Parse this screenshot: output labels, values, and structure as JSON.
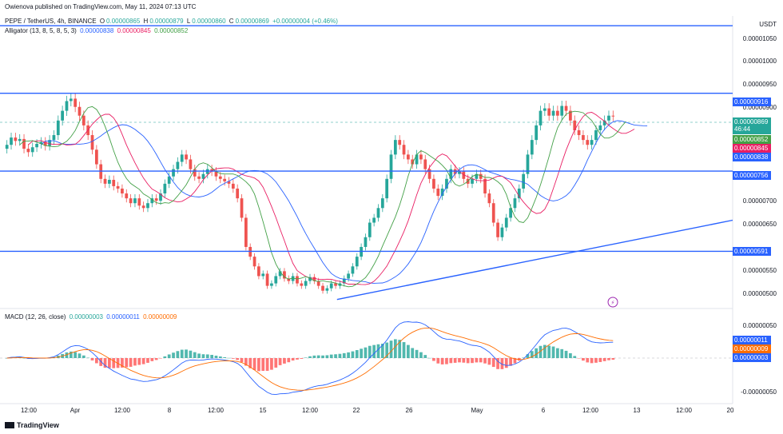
{
  "header": {
    "published": "Owienova published on TradingView.com, May 11, 2024 07:13 UTC",
    "symbol": "PEPE / TetherUS, 4h, BINANCE",
    "ohlc": {
      "o_label": "O",
      "o": "0.00000865",
      "h_label": "H",
      "h": "0.00000879",
      "l_label": "L",
      "l": "0.00000860",
      "c_label": "C",
      "c": "0.00000869",
      "change": "+0.00000004 (+0.46%)"
    },
    "alligator": {
      "label": "Alligator (13, 8, 5, 8, 5, 3)",
      "jaw": "0.00000838",
      "teeth": "0.00000845",
      "lips": "0.00000852"
    },
    "macd": {
      "label": "MACD (12, 26, close)",
      "hist": "0.00000003",
      "macd": "0.00000011",
      "signal": "0.00000009"
    }
  },
  "colors": {
    "up": "#26a69a",
    "down": "#ef5350",
    "jaw": "#2962ff",
    "teeth": "#e91e63",
    "lips": "#43a047",
    "line": "#2962ff",
    "signal": "#ff6d00",
    "macd_line": "#2962ff",
    "hist_up": "#26a69a",
    "hist_down": "#ff5252",
    "badge_current": "#26a69a"
  },
  "price_axis": {
    "currency": "USDT",
    "ticks": [
      "0.00001050",
      "0.00001000",
      "0.00000950",
      "0.00000900",
      "0.00000700",
      "0.00000650",
      "0.00000550",
      "0.00000500"
    ]
  },
  "macd_axis": {
    "ticks": [
      "0.00000050",
      "-0.00000050"
    ]
  },
  "badges": {
    "resistance_top": "0.00000916",
    "current": "0.00000869",
    "countdown": "46:44",
    "lips": "0.00000852",
    "teeth": "0.00000845",
    "jaw": "0.00000838",
    "level_mid": "0.00000756",
    "level_low": "0.00000591",
    "macd_line": "0.00000011",
    "signal": "0.00000009",
    "hist": "0.00000003"
  },
  "time_axis": [
    "12:00",
    "Apr",
    "12:00",
    "8",
    "12:00",
    "15",
    "12:00",
    "22",
    "26",
    "May",
    "6",
    "12:00",
    "13",
    "12:00",
    "20"
  ],
  "footer": {
    "brand": "TradingView"
  },
  "chart_data": {
    "type": "candlestick",
    "title": "PEPE / TetherUS, 4h, BINANCE",
    "ylim": [
      4.75e-06,
      1.075e-05
    ],
    "horizontal_levels": [
      1.055e-05,
      9.16e-06,
      7.56e-06,
      5.91e-06
    ],
    "trendline": [
      {
        "x": 0.46,
        "y": 4.92e-06
      },
      {
        "x": 1.0,
        "y": 6.55e-06
      }
    ],
    "closes": [
      8.1e-06,
      8.25e-06,
      8.18e-06,
      8.22e-06,
      8.02e-06,
      7.95e-06,
      8.05e-06,
      8.12e-06,
      8.16e-06,
      8.08e-06,
      8.2e-06,
      8.3e-06,
      8.6e-06,
      8.8e-06,
      9e-06,
      9.05e-06,
      8.88e-06,
      8.7e-06,
      8.5e-06,
      8.3e-06,
      8e-06,
      7.7e-06,
      7.4e-06,
      7.3e-06,
      7.38e-06,
      7.25e-06,
      7.2e-06,
      7.1e-06,
      7e-06,
      6.9e-06,
      7e-06,
      6.85e-06,
      6.8e-06,
      6.9e-06,
      7e-06,
      6.95e-06,
      7.1e-06,
      7.3e-06,
      7.45e-06,
      7.6e-06,
      7.75e-06,
      7.9e-06,
      7.8e-06,
      7.6e-06,
      7.45e-06,
      7.4e-06,
      7.5e-06,
      7.6e-06,
      7.55e-06,
      7.45e-06,
      7.4e-06,
      7.35e-06,
      7.3e-06,
      7.2e-06,
      7e-06,
      6.6e-06,
      6e-06,
      5.8e-06,
      5.6e-06,
      5.4e-06,
      5.45e-06,
      5.2e-06,
      5.25e-06,
      5.4e-06,
      5.5e-06,
      5.35e-06,
      5.3e-06,
      5.4e-06,
      5.25e-06,
      5.2e-06,
      5.3e-06,
      5.38e-06,
      5.3e-06,
      5.2e-06,
      5.1e-06,
      5.15e-06,
      5.25e-06,
      5.2e-06,
      5.25e-06,
      5.35e-06,
      5.45e-06,
      5.6e-06,
      5.8e-06,
      6e-06,
      6.2e-06,
      6.5e-06,
      6.6e-06,
      6.8e-06,
      7e-06,
      7.4e-06,
      7.9e-06,
      8.2e-06,
      8.1e-06,
      7.9e-06,
      7.8e-06,
      7.7e-06,
      7.9e-06,
      7.8e-06,
      7.6e-06,
      7.4e-06,
      7.2e-06,
      7.05e-06,
      7.2e-06,
      7.4e-06,
      7.6e-06,
      7.5e-06,
      7.55e-06,
      7.4e-06,
      7.3e-06,
      7.4e-06,
      7.5e-06,
      7.4e-06,
      7.1e-06,
      6.9e-06,
      6.5e-06,
      6.2e-06,
      6.4e-06,
      6.6e-06,
      6.8e-06,
      7e-06,
      7.2e-06,
      7.5e-06,
      7.9e-06,
      8.2e-06,
      8.5e-06,
      8.8e-06,
      8.85e-06,
      8.7e-06,
      8.8e-06,
      8.7e-06,
      8.9e-06,
      8.8e-06,
      8.6e-06,
      8.4e-06,
      8.3e-06,
      8.2e-06,
      8.1e-06,
      8.2e-06,
      8.4e-06,
      8.5e-06,
      8.6e-06,
      8.7e-06,
      8.69e-06
    ]
  }
}
